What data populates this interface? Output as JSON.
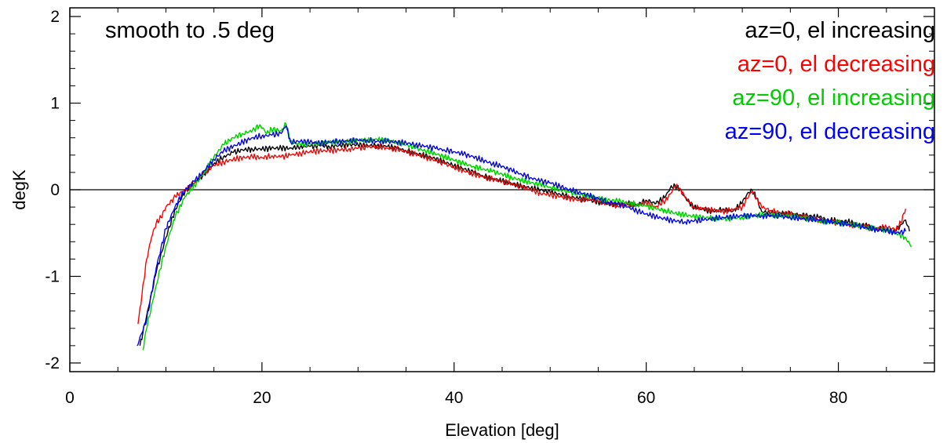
{
  "chart_data": {
    "type": "line",
    "title": "",
    "annotation": "smooth to .5 deg",
    "xlabel": "Elevation [deg]",
    "ylabel": "degK",
    "xlim": [
      0,
      90
    ],
    "ylim": [
      -2.1,
      2.1
    ],
    "x_ticks": [
      0,
      20,
      40,
      60,
      80
    ],
    "x_tick_labels": [
      "0",
      "20",
      "40",
      "60",
      "80"
    ],
    "y_ticks": [
      -2,
      -1,
      0,
      1,
      2
    ],
    "y_tick_labels": [
      "-2",
      "-1",
      "0",
      "1",
      "2"
    ],
    "zero_line": true,
    "grid": false,
    "legend_position": "top-right",
    "series": [
      {
        "name": "az=0, el increasing",
        "color": "#000000",
        "x": [
          7.3,
          8,
          9,
          10,
          11,
          12,
          13,
          14,
          15,
          16,
          17,
          18,
          19,
          20,
          21,
          22,
          23,
          24,
          25,
          26,
          27,
          28,
          29,
          30,
          31,
          32,
          33,
          34,
          35,
          36,
          37,
          38,
          39,
          40,
          41,
          42,
          43,
          44,
          45,
          46,
          47,
          48,
          49,
          50,
          51,
          52,
          53,
          54,
          55,
          56,
          57,
          58,
          59,
          60,
          61,
          62,
          62.5,
          63,
          63.5,
          64,
          64.5,
          65,
          66,
          67,
          68,
          69,
          70,
          70.5,
          71,
          71.5,
          72,
          73,
          74,
          75,
          76,
          77,
          78,
          79,
          80,
          81,
          82,
          83,
          84,
          85,
          86,
          86.5,
          87,
          87.4
        ],
        "y": [
          -1.8,
          -1.45,
          -0.95,
          -0.55,
          -0.22,
          -0.02,
          0.08,
          0.18,
          0.3,
          0.38,
          0.43,
          0.46,
          0.47,
          0.47,
          0.48,
          0.48,
          0.48,
          0.5,
          0.5,
          0.51,
          0.5,
          0.51,
          0.52,
          0.52,
          0.51,
          0.51,
          0.5,
          0.48,
          0.45,
          0.42,
          0.39,
          0.36,
          0.32,
          0.28,
          0.24,
          0.2,
          0.16,
          0.13,
          0.1,
          0.07,
          0.04,
          0.02,
          0.0,
          -0.03,
          -0.05,
          -0.08,
          -0.1,
          -0.12,
          -0.14,
          -0.16,
          -0.17,
          -0.16,
          -0.18,
          -0.12,
          -0.16,
          -0.08,
          0.02,
          0.05,
          0.0,
          -0.08,
          -0.15,
          -0.2,
          -0.23,
          -0.25,
          -0.22,
          -0.25,
          -0.15,
          -0.05,
          0.0,
          -0.1,
          -0.25,
          -0.27,
          -0.27,
          -0.28,
          -0.29,
          -0.3,
          -0.32,
          -0.35,
          -0.36,
          -0.37,
          -0.4,
          -0.42,
          -0.44,
          -0.46,
          -0.48,
          -0.4,
          -0.35,
          -0.48
        ]
      },
      {
        "name": "az=0, el decreasing",
        "color": "#ff0000",
        "x": [
          7.1,
          8,
          8.5,
          9,
          9.5,
          10,
          11,
          12,
          13,
          14,
          15,
          16,
          17,
          18,
          19,
          20,
          21,
          22,
          23,
          24,
          25,
          26,
          27,
          28,
          29,
          30,
          31,
          32,
          33,
          34,
          35,
          36,
          37,
          38,
          39,
          40,
          41,
          42,
          43,
          44,
          45,
          46,
          47,
          48,
          49,
          50,
          51,
          52,
          53,
          54,
          55,
          56,
          57,
          58,
          59,
          60,
          61,
          62,
          62.5,
          63,
          63.5,
          64,
          64.5,
          65,
          66,
          67,
          68,
          69,
          70,
          70.5,
          71,
          71.5,
          72,
          73,
          74,
          75,
          76,
          77,
          78,
          79,
          80,
          81,
          82,
          83,
          84,
          85,
          86,
          86.5,
          87
        ],
        "y": [
          -1.55,
          -0.8,
          -0.55,
          -0.38,
          -0.32,
          -0.2,
          -0.08,
          0.0,
          0.08,
          0.2,
          0.28,
          0.32,
          0.35,
          0.37,
          0.38,
          0.37,
          0.39,
          0.38,
          0.4,
          0.42,
          0.44,
          0.45,
          0.45,
          0.46,
          0.47,
          0.48,
          0.49,
          0.5,
          0.48,
          0.47,
          0.44,
          0.41,
          0.38,
          0.34,
          0.3,
          0.26,
          0.22,
          0.18,
          0.15,
          0.12,
          0.1,
          0.07,
          0.03,
          0.0,
          -0.04,
          -0.06,
          -0.08,
          -0.1,
          -0.12,
          -0.1,
          -0.14,
          -0.16,
          -0.18,
          -0.17,
          -0.18,
          -0.15,
          -0.2,
          -0.12,
          -0.05,
          0.04,
          0.02,
          -0.08,
          -0.15,
          -0.2,
          -0.22,
          -0.24,
          -0.25,
          -0.23,
          -0.2,
          -0.1,
          -0.02,
          -0.1,
          -0.2,
          -0.24,
          -0.27,
          -0.28,
          -0.3,
          -0.33,
          -0.35,
          -0.37,
          -0.38,
          -0.4,
          -0.41,
          -0.43,
          -0.45,
          -0.43,
          -0.46,
          -0.38,
          -0.22
        ]
      },
      {
        "name": "az=90, el increasing",
        "color": "#00cc00",
        "x": [
          7.6,
          8,
          9,
          10,
          11,
          12,
          13,
          14,
          15,
          16,
          17,
          18,
          19,
          19.8,
          20.5,
          21,
          22,
          22.5,
          23,
          24,
          25,
          26,
          27,
          28,
          29,
          30,
          31,
          32,
          33,
          34,
          35,
          36,
          37,
          38,
          39,
          40,
          41,
          42,
          43,
          44,
          45,
          46,
          47,
          48,
          49,
          50,
          51,
          52,
          53,
          54,
          55,
          56,
          57,
          58,
          59,
          60,
          61,
          62,
          63,
          64,
          65,
          66,
          67,
          68,
          69,
          70,
          71,
          72,
          73,
          74,
          75,
          76,
          77,
          78,
          79,
          80,
          81,
          82,
          83,
          84,
          85,
          86,
          87,
          87.6
        ],
        "y": [
          -1.85,
          -1.6,
          -1.1,
          -0.65,
          -0.3,
          -0.08,
          0.05,
          0.2,
          0.38,
          0.52,
          0.6,
          0.65,
          0.68,
          0.75,
          0.65,
          0.7,
          0.68,
          0.76,
          0.55,
          0.52,
          0.53,
          0.54,
          0.55,
          0.55,
          0.56,
          0.57,
          0.57,
          0.58,
          0.57,
          0.55,
          0.52,
          0.48,
          0.45,
          0.42,
          0.38,
          0.34,
          0.3,
          0.27,
          0.24,
          0.21,
          0.18,
          0.14,
          0.11,
          0.08,
          0.06,
          0.03,
          0.0,
          -0.03,
          -0.05,
          -0.07,
          -0.1,
          -0.12,
          -0.13,
          -0.15,
          -0.17,
          -0.19,
          -0.22,
          -0.24,
          -0.27,
          -0.29,
          -0.31,
          -0.32,
          -0.33,
          -0.34,
          -0.33,
          -0.32,
          -0.3,
          -0.29,
          -0.29,
          -0.3,
          -0.3,
          -0.32,
          -0.34,
          -0.36,
          -0.37,
          -0.38,
          -0.4,
          -0.41,
          -0.44,
          -0.45,
          -0.47,
          -0.5,
          -0.55,
          -0.66
        ]
      },
      {
        "name": "az=90, el decreasing",
        "color": "#0000ff",
        "x": [
          7.0,
          8,
          9,
          10,
          11,
          12,
          13,
          14,
          15,
          16,
          17,
          18,
          19,
          20,
          21,
          22,
          22.5,
          23,
          24,
          25,
          26,
          27,
          28,
          29,
          30,
          31,
          32,
          33,
          34,
          35,
          36,
          37,
          38,
          39,
          40,
          41,
          42,
          43,
          44,
          45,
          46,
          47,
          48,
          49,
          50,
          51,
          52,
          53,
          54,
          55,
          56,
          57,
          58,
          59,
          60,
          61,
          62,
          63,
          64,
          65,
          66,
          67,
          68,
          69,
          70,
          71,
          72,
          73,
          74,
          75,
          76,
          77,
          78,
          79,
          80,
          81,
          82,
          83,
          84,
          85,
          86,
          87
        ],
        "y": [
          -1.8,
          -1.5,
          -0.9,
          -0.45,
          -0.18,
          0.0,
          0.1,
          0.22,
          0.35,
          0.45,
          0.5,
          0.55,
          0.6,
          0.62,
          0.63,
          0.65,
          0.74,
          0.55,
          0.56,
          0.55,
          0.54,
          0.55,
          0.56,
          0.56,
          0.57,
          0.57,
          0.56,
          0.56,
          0.55,
          0.54,
          0.52,
          0.5,
          0.48,
          0.46,
          0.44,
          0.41,
          0.38,
          0.34,
          0.3,
          0.27,
          0.22,
          0.18,
          0.14,
          0.1,
          0.08,
          0.04,
          0.0,
          -0.03,
          -0.07,
          -0.1,
          -0.14,
          -0.16,
          -0.2,
          -0.24,
          -0.28,
          -0.31,
          -0.34,
          -0.36,
          -0.37,
          -0.36,
          -0.35,
          -0.33,
          -0.32,
          -0.31,
          -0.3,
          -0.3,
          -0.3,
          -0.3,
          -0.31,
          -0.32,
          -0.33,
          -0.34,
          -0.35,
          -0.37,
          -0.38,
          -0.4,
          -0.42,
          -0.44,
          -0.46,
          -0.47,
          -0.5,
          -0.48
        ]
      }
    ]
  }
}
